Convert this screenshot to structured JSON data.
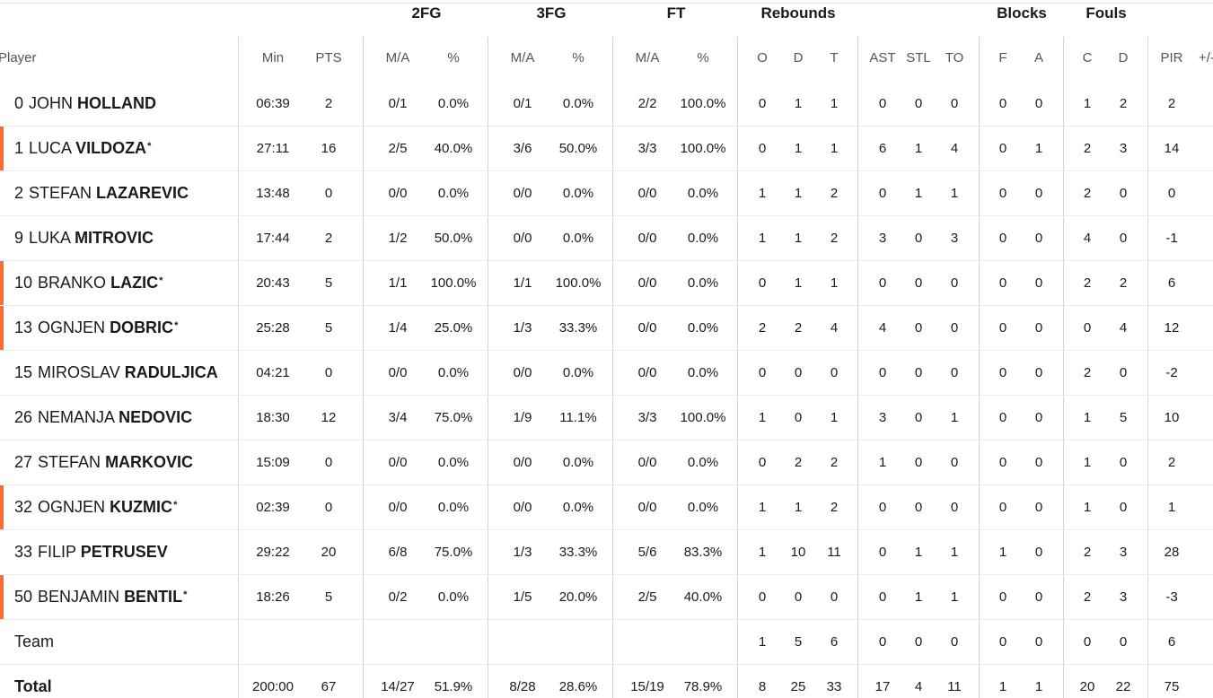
{
  "groups": {
    "fg2": "2FG",
    "fg3": "3FG",
    "ft": "FT",
    "rebounds": "Rebounds",
    "blocks": "Blocks",
    "fouls": "Fouls"
  },
  "headers": {
    "player": "Player",
    "min": "Min",
    "pts": "PTS",
    "fg2_ma": "M/A",
    "fg2_pct": "%",
    "fg3_ma": "M/A",
    "fg3_pct": "%",
    "ft_ma": "M/A",
    "ft_pct": "%",
    "reb_o": "O",
    "reb_d": "D",
    "reb_t": "T",
    "ast": "AST",
    "stl": "STL",
    "to": "TO",
    "blk_f": "F",
    "blk_a": "A",
    "foul_c": "C",
    "foul_d": "D",
    "pir": "PIR",
    "pm": "+/-"
  },
  "starter_mark": "*",
  "accent_color": "#ff6b35",
  "players": [
    {
      "number": "0",
      "first": "JOHN",
      "last": "HOLLAND",
      "starter": false,
      "stats": {
        "min": "06:39",
        "pts": "2",
        "fg2_ma": "0/1",
        "fg2_pct": "0.0%",
        "fg3_ma": "0/1",
        "fg3_pct": "0.0%",
        "ft_ma": "2/2",
        "ft_pct": "100.0%",
        "reb_o": "0",
        "reb_d": "1",
        "reb_t": "1",
        "ast": "0",
        "stl": "0",
        "to": "0",
        "blk_f": "0",
        "blk_a": "0",
        "foul_c": "1",
        "foul_d": "2",
        "pir": "2"
      }
    },
    {
      "number": "1",
      "first": "LUCA",
      "last": "VILDOZA",
      "starter": true,
      "stats": {
        "min": "27:11",
        "pts": "16",
        "fg2_ma": "2/5",
        "fg2_pct": "40.0%",
        "fg3_ma": "3/6",
        "fg3_pct": "50.0%",
        "ft_ma": "3/3",
        "ft_pct": "100.0%",
        "reb_o": "0",
        "reb_d": "1",
        "reb_t": "1",
        "ast": "6",
        "stl": "1",
        "to": "4",
        "blk_f": "0",
        "blk_a": "1",
        "foul_c": "2",
        "foul_d": "3",
        "pir": "14"
      }
    },
    {
      "number": "2",
      "first": "STEFAN",
      "last": "LAZAREVIC",
      "starter": false,
      "stats": {
        "min": "13:48",
        "pts": "0",
        "fg2_ma": "0/0",
        "fg2_pct": "0.0%",
        "fg3_ma": "0/0",
        "fg3_pct": "0.0%",
        "ft_ma": "0/0",
        "ft_pct": "0.0%",
        "reb_o": "1",
        "reb_d": "1",
        "reb_t": "2",
        "ast": "0",
        "stl": "1",
        "to": "1",
        "blk_f": "0",
        "blk_a": "0",
        "foul_c": "2",
        "foul_d": "0",
        "pir": "0"
      }
    },
    {
      "number": "9",
      "first": "LUKA",
      "last": "MITROVIC",
      "starter": false,
      "stats": {
        "min": "17:44",
        "pts": "2",
        "fg2_ma": "1/2",
        "fg2_pct": "50.0%",
        "fg3_ma": "0/0",
        "fg3_pct": "0.0%",
        "ft_ma": "0/0",
        "ft_pct": "0.0%",
        "reb_o": "1",
        "reb_d": "1",
        "reb_t": "2",
        "ast": "3",
        "stl": "0",
        "to": "3",
        "blk_f": "0",
        "blk_a": "0",
        "foul_c": "4",
        "foul_d": "0",
        "pir": "-1"
      }
    },
    {
      "number": "10",
      "first": "BRANKO",
      "last": "LAZIC",
      "starter": true,
      "stats": {
        "min": "20:43",
        "pts": "5",
        "fg2_ma": "1/1",
        "fg2_pct": "100.0%",
        "fg3_ma": "1/1",
        "fg3_pct": "100.0%",
        "ft_ma": "0/0",
        "ft_pct": "0.0%",
        "reb_o": "0",
        "reb_d": "1",
        "reb_t": "1",
        "ast": "0",
        "stl": "0",
        "to": "0",
        "blk_f": "0",
        "blk_a": "0",
        "foul_c": "2",
        "foul_d": "2",
        "pir": "6"
      }
    },
    {
      "number": "13",
      "first": "OGNJEN",
      "last": "DOBRIC",
      "starter": true,
      "stats": {
        "min": "25:28",
        "pts": "5",
        "fg2_ma": "1/4",
        "fg2_pct": "25.0%",
        "fg3_ma": "1/3",
        "fg3_pct": "33.3%",
        "ft_ma": "0/0",
        "ft_pct": "0.0%",
        "reb_o": "2",
        "reb_d": "2",
        "reb_t": "4",
        "ast": "4",
        "stl": "0",
        "to": "0",
        "blk_f": "0",
        "blk_a": "0",
        "foul_c": "0",
        "foul_d": "4",
        "pir": "12"
      }
    },
    {
      "number": "15",
      "first": "MIROSLAV",
      "last": "RADULJICA",
      "starter": false,
      "stats": {
        "min": "04:21",
        "pts": "0",
        "fg2_ma": "0/0",
        "fg2_pct": "0.0%",
        "fg3_ma": "0/0",
        "fg3_pct": "0.0%",
        "ft_ma": "0/0",
        "ft_pct": "0.0%",
        "reb_o": "0",
        "reb_d": "0",
        "reb_t": "0",
        "ast": "0",
        "stl": "0",
        "to": "0",
        "blk_f": "0",
        "blk_a": "0",
        "foul_c": "2",
        "foul_d": "0",
        "pir": "-2"
      }
    },
    {
      "number": "26",
      "first": "NEMANJA",
      "last": "NEDOVIC",
      "starter": false,
      "stats": {
        "min": "18:30",
        "pts": "12",
        "fg2_ma": "3/4",
        "fg2_pct": "75.0%",
        "fg3_ma": "1/9",
        "fg3_pct": "11.1%",
        "ft_ma": "3/3",
        "ft_pct": "100.0%",
        "reb_o": "1",
        "reb_d": "0",
        "reb_t": "1",
        "ast": "3",
        "stl": "0",
        "to": "1",
        "blk_f": "0",
        "blk_a": "0",
        "foul_c": "1",
        "foul_d": "5",
        "pir": "10"
      }
    },
    {
      "number": "27",
      "first": "STEFAN",
      "last": "MARKOVIC",
      "starter": false,
      "stats": {
        "min": "15:09",
        "pts": "0",
        "fg2_ma": "0/0",
        "fg2_pct": "0.0%",
        "fg3_ma": "0/0",
        "fg3_pct": "0.0%",
        "ft_ma": "0/0",
        "ft_pct": "0.0%",
        "reb_o": "0",
        "reb_d": "2",
        "reb_t": "2",
        "ast": "1",
        "stl": "0",
        "to": "0",
        "blk_f": "0",
        "blk_a": "0",
        "foul_c": "1",
        "foul_d": "0",
        "pir": "2"
      }
    },
    {
      "number": "32",
      "first": "OGNJEN",
      "last": "KUZMIC",
      "starter": true,
      "stats": {
        "min": "02:39",
        "pts": "0",
        "fg2_ma": "0/0",
        "fg2_pct": "0.0%",
        "fg3_ma": "0/0",
        "fg3_pct": "0.0%",
        "ft_ma": "0/0",
        "ft_pct": "0.0%",
        "reb_o": "1",
        "reb_d": "1",
        "reb_t": "2",
        "ast": "0",
        "stl": "0",
        "to": "0",
        "blk_f": "0",
        "blk_a": "0",
        "foul_c": "1",
        "foul_d": "0",
        "pir": "1"
      }
    },
    {
      "number": "33",
      "first": "FILIP",
      "last": "PETRUSEV",
      "starter": false,
      "stats": {
        "min": "29:22",
        "pts": "20",
        "fg2_ma": "6/8",
        "fg2_pct": "75.0%",
        "fg3_ma": "1/3",
        "fg3_pct": "33.3%",
        "ft_ma": "5/6",
        "ft_pct": "83.3%",
        "reb_o": "1",
        "reb_d": "10",
        "reb_t": "11",
        "ast": "0",
        "stl": "1",
        "to": "1",
        "blk_f": "1",
        "blk_a": "0",
        "foul_c": "2",
        "foul_d": "3",
        "pir": "28"
      }
    },
    {
      "number": "50",
      "first": "BENJAMIN",
      "last": "BENTIL",
      "starter": true,
      "stats": {
        "min": "18:26",
        "pts": "5",
        "fg2_ma": "0/2",
        "fg2_pct": "0.0%",
        "fg3_ma": "1/5",
        "fg3_pct": "20.0%",
        "ft_ma": "2/5",
        "ft_pct": "40.0%",
        "reb_o": "0",
        "reb_d": "0",
        "reb_t": "0",
        "ast": "0",
        "stl": "1",
        "to": "1",
        "blk_f": "0",
        "blk_a": "0",
        "foul_c": "2",
        "foul_d": "3",
        "pir": "-3"
      }
    }
  ],
  "team": {
    "label": "Team",
    "stats": {
      "reb_o": "1",
      "reb_d": "5",
      "reb_t": "6",
      "ast": "0",
      "stl": "0",
      "to": "0",
      "blk_f": "0",
      "blk_a": "0",
      "foul_c": "0",
      "foul_d": "0",
      "pir": "6"
    }
  },
  "total": {
    "label": "Total",
    "stats": {
      "min": "200:00",
      "pts": "67",
      "fg2_ma": "14/27",
      "fg2_pct": "51.9%",
      "fg3_ma": "8/28",
      "fg3_pct": "28.6%",
      "ft_ma": "15/19",
      "ft_pct": "78.9%",
      "reb_o": "8",
      "reb_d": "25",
      "reb_t": "33",
      "ast": "17",
      "stl": "4",
      "to": "11",
      "blk_f": "1",
      "blk_a": "1",
      "foul_c": "20",
      "foul_d": "22",
      "pir": "75"
    }
  }
}
